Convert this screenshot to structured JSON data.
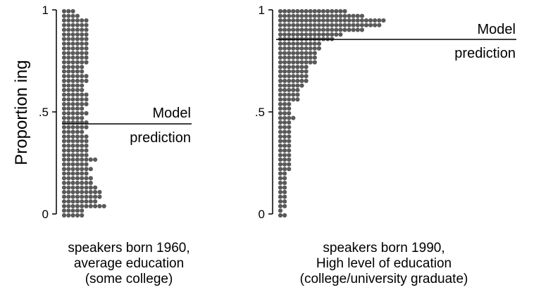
{
  "chart_data": {
    "type": "dotplot",
    "ylabel": "Proportion ing",
    "ylim": [
      0,
      1
    ],
    "yticks": [
      {
        "value": 0,
        "label": "0"
      },
      {
        "value": 0.5,
        "label": ".5"
      },
      {
        "value": 1,
        "label": "1"
      }
    ],
    "dot_color": "#595959",
    "bin_width": 0.0227,
    "panels": [
      {
        "caption": [
          "speakers born 1960,",
          "average education",
          "(some college)"
        ],
        "model_prediction": 0.44,
        "prediction_label": [
          "Model",
          "prediction"
        ],
        "bins": [
          {
            "y": 0.0,
            "count": 5
          },
          {
            "y": 0.023,
            "count": 5
          },
          {
            "y": 0.045,
            "count": 10
          },
          {
            "y": 0.068,
            "count": 8
          },
          {
            "y": 0.091,
            "count": 9
          },
          {
            "y": 0.114,
            "count": 9
          },
          {
            "y": 0.136,
            "count": 8
          },
          {
            "y": 0.159,
            "count": 7
          },
          {
            "y": 0.182,
            "count": 7
          },
          {
            "y": 0.205,
            "count": 6
          },
          {
            "y": 0.227,
            "count": 7
          },
          {
            "y": 0.25,
            "count": 6
          },
          {
            "y": 0.273,
            "count": 8
          },
          {
            "y": 0.295,
            "count": 6
          },
          {
            "y": 0.318,
            "count": 6
          },
          {
            "y": 0.341,
            "count": 6
          },
          {
            "y": 0.364,
            "count": 6
          },
          {
            "y": 0.386,
            "count": 6
          },
          {
            "y": 0.409,
            "count": 5
          },
          {
            "y": 0.432,
            "count": 6
          },
          {
            "y": 0.455,
            "count": 6
          },
          {
            "y": 0.477,
            "count": 5
          },
          {
            "y": 0.5,
            "count": 6
          },
          {
            "y": 0.523,
            "count": 5
          },
          {
            "y": 0.545,
            "count": 6
          },
          {
            "y": 0.568,
            "count": 6
          },
          {
            "y": 0.591,
            "count": 6
          },
          {
            "y": 0.614,
            "count": 5
          },
          {
            "y": 0.636,
            "count": 5
          },
          {
            "y": 0.659,
            "count": 6
          },
          {
            "y": 0.682,
            "count": 6
          },
          {
            "y": 0.705,
            "count": 5
          },
          {
            "y": 0.727,
            "count": 5
          },
          {
            "y": 0.75,
            "count": 6
          },
          {
            "y": 0.773,
            "count": 6
          },
          {
            "y": 0.795,
            "count": 6
          },
          {
            "y": 0.818,
            "count": 6
          },
          {
            "y": 0.841,
            "count": 6
          },
          {
            "y": 0.864,
            "count": 6
          },
          {
            "y": 0.886,
            "count": 6
          },
          {
            "y": 0.909,
            "count": 6
          },
          {
            "y": 0.932,
            "count": 6
          },
          {
            "y": 0.955,
            "count": 6
          },
          {
            "y": 0.977,
            "count": 4
          },
          {
            "y": 1.0,
            "count": 3
          }
        ]
      },
      {
        "caption": [
          "speakers born 1990,",
          "High level of education",
          "(college/university graduate)"
        ],
        "model_prediction": 0.855,
        "prediction_label": [
          "Model",
          "prediction"
        ],
        "bins": [
          {
            "y": 0.0,
            "count": 2
          },
          {
            "y": 0.023,
            "count": 1
          },
          {
            "y": 0.045,
            "count": 2
          },
          {
            "y": 0.068,
            "count": 2
          },
          {
            "y": 0.091,
            "count": 2
          },
          {
            "y": 0.114,
            "count": 2
          },
          {
            "y": 0.136,
            "count": 2
          },
          {
            "y": 0.159,
            "count": 2
          },
          {
            "y": 0.182,
            "count": 2
          },
          {
            "y": 0.205,
            "count": 2
          },
          {
            "y": 0.227,
            "count": 3
          },
          {
            "y": 0.25,
            "count": 3
          },
          {
            "y": 0.273,
            "count": 3
          },
          {
            "y": 0.295,
            "count": 3
          },
          {
            "y": 0.318,
            "count": 3
          },
          {
            "y": 0.341,
            "count": 3
          },
          {
            "y": 0.364,
            "count": 3
          },
          {
            "y": 0.386,
            "count": 3
          },
          {
            "y": 0.409,
            "count": 3
          },
          {
            "y": 0.432,
            "count": 3
          },
          {
            "y": 0.455,
            "count": 3
          },
          {
            "y": 0.477,
            "count": 4
          },
          {
            "y": 0.5,
            "count": 3
          },
          {
            "y": 0.523,
            "count": 3
          },
          {
            "y": 0.545,
            "count": 3
          },
          {
            "y": 0.568,
            "count": 5
          },
          {
            "y": 0.591,
            "count": 5
          },
          {
            "y": 0.614,
            "count": 5
          },
          {
            "y": 0.636,
            "count": 6
          },
          {
            "y": 0.659,
            "count": 7
          },
          {
            "y": 0.682,
            "count": 7
          },
          {
            "y": 0.705,
            "count": 7
          },
          {
            "y": 0.727,
            "count": 7
          },
          {
            "y": 0.75,
            "count": 9
          },
          {
            "y": 0.773,
            "count": 9
          },
          {
            "y": 0.795,
            "count": 9
          },
          {
            "y": 0.818,
            "count": 10
          },
          {
            "y": 0.841,
            "count": 10
          },
          {
            "y": 0.864,
            "count": 13
          },
          {
            "y": 0.886,
            "count": 15
          },
          {
            "y": 0.909,
            "count": 20
          },
          {
            "y": 0.932,
            "count": 24
          },
          {
            "y": 0.955,
            "count": 25
          },
          {
            "y": 0.977,
            "count": 20
          },
          {
            "y": 1.0,
            "count": 16
          }
        ]
      }
    ]
  }
}
